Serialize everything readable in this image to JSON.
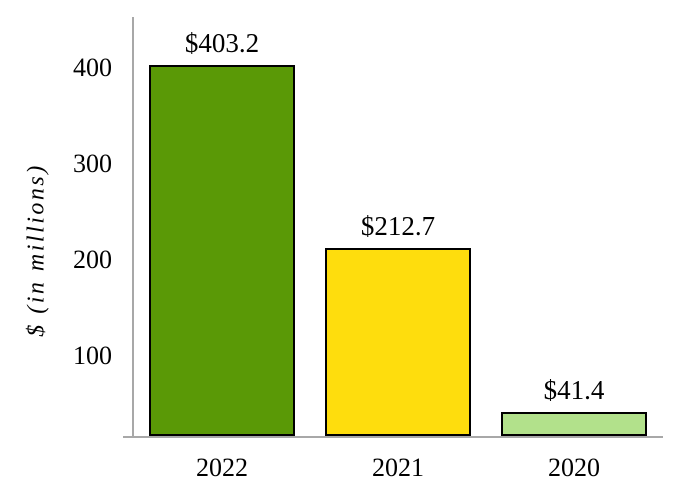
{
  "chart_data": {
    "type": "bar",
    "title": "",
    "ylabel": "$ (in millions)",
    "xlabel": "",
    "categories": [
      "2022",
      "2021",
      "2020"
    ],
    "values": [
      403.2,
      212.7,
      41.4
    ],
    "bar_labels": [
      "$403.2",
      "$212.7",
      "$41.4"
    ],
    "bar_colors": [
      "#5a9906",
      "#fedd0d",
      "#b2e18b"
    ],
    "bar_border_color": "#000000",
    "yticks": [
      100,
      200,
      300,
      400
    ],
    "ylim": [
      15,
      453
    ],
    "axis_color": "#a8a8a8",
    "grid": false,
    "legend_position": "none"
  }
}
